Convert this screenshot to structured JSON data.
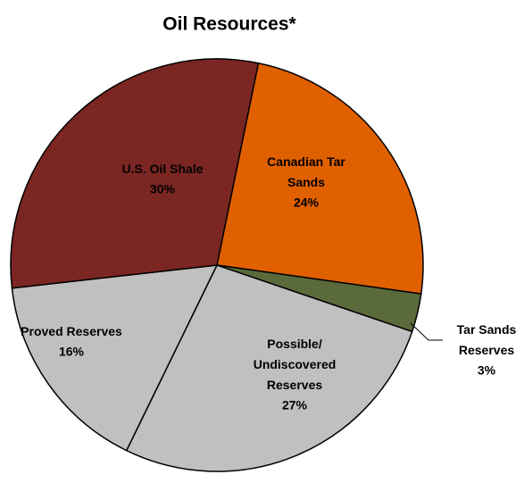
{
  "chart_data": {
    "type": "pie",
    "title": "Oil Resources*",
    "categories": [
      "Canadian Tar Sands",
      "Tar Sands Reserves",
      "Possible/ Undiscovered Reserves",
      "Proved Reserves",
      "U.S. Oil Shale"
    ],
    "values": [
      24,
      3,
      27,
      16,
      30
    ],
    "value_labels": [
      "24%",
      "3%",
      "27%",
      "16%",
      "30%"
    ],
    "colors": [
      "#e06000",
      "#5b6a3b",
      "#c0c0c0",
      "#c0c0c0",
      "#7b2622"
    ]
  }
}
